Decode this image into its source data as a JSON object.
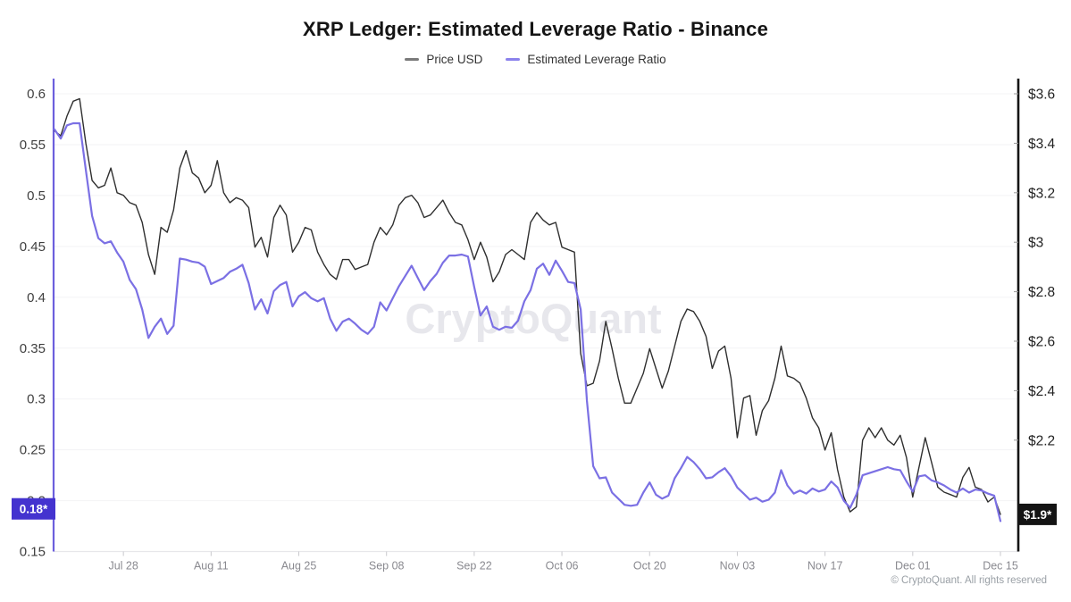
{
  "header": {
    "title": "XRP Ledger: Estimated Leverage Ratio - Binance"
  },
  "legend": [
    {
      "label": "Price USD",
      "color": "#7a7a7a"
    },
    {
      "label": "Estimated Leverage Ratio",
      "color": "#8b82ec"
    }
  ],
  "watermark": {
    "text": "CryptoQuant",
    "color": "#d8d8e0"
  },
  "footer": {
    "text": "© CryptoQuant. All rights reserved"
  },
  "chart_data": {
    "type": "line",
    "title": "XRP Ledger: Estimated Leverage Ratio - Binance",
    "x_start_date": "Jul 17",
    "x_frequency": "daily",
    "x_tick_days": [
      11,
      25,
      39,
      53,
      67,
      81,
      95,
      109,
      123,
      137,
      151
    ],
    "x_tick_labels": [
      "Jul 28",
      "Aug 11",
      "Aug 25",
      "Sep 08",
      "Sep 22",
      "Oct 06",
      "Oct 20",
      "Nov 03",
      "Nov 17",
      "Dec 01",
      "Dec 15"
    ],
    "grid": "horizontal",
    "left_axis": {
      "name": "Estimated Leverage Ratio",
      "range": [
        0.15,
        0.6
      ],
      "tick_values": [
        0.6,
        0.55,
        0.5,
        0.45,
        0.4,
        0.35,
        0.3,
        0.25,
        0.2,
        0.15
      ],
      "ticks": [
        "0.6",
        "0.55",
        "0.5",
        "0.45",
        "0.4",
        "0.35",
        "0.3",
        "0.25",
        "0.2",
        "0.15"
      ],
      "axis_color": "#6c5fdd",
      "label_color": "#3f3f3f"
    },
    "right_axis": {
      "name": "Price USD",
      "range_shown": [
        2.2,
        3.6
      ],
      "tick_values": [
        3.6,
        3.4,
        3.2,
        3.0,
        2.8,
        2.6,
        2.4,
        2.2
      ],
      "ticks": [
        "$3.6",
        "$3.4",
        "$3.2",
        "$3",
        "$2.8",
        "$2.6",
        "$2.4",
        "$2.2"
      ],
      "axis_color": "#141414",
      "label_color": "#222222"
    },
    "badges": [
      {
        "label": "0.18*",
        "axis": "left",
        "anchor": 0.192,
        "bg": "#4433cf",
        "fg": "#ffffff"
      },
      {
        "label": "$1.9*",
        "axis": "right",
        "anchor": 1.9,
        "bg": "#141414",
        "fg": "#ffffff"
      }
    ],
    "series": [
      {
        "name": "Price USD",
        "axis": "right",
        "color": "#2f2f2f",
        "width": 1.4,
        "values": [
          3.45,
          3.43,
          3.51,
          3.57,
          3.58,
          3.4,
          3.25,
          3.22,
          3.23,
          3.3,
          3.2,
          3.19,
          3.16,
          3.15,
          3.08,
          2.95,
          2.87,
          3.06,
          3.04,
          3.13,
          3.3,
          3.37,
          3.28,
          3.26,
          3.2,
          3.23,
          3.33,
          3.2,
          3.16,
          3.18,
          3.17,
          3.14,
          2.98,
          3.02,
          2.94,
          3.1,
          3.15,
          3.11,
          2.96,
          3.0,
          3.06,
          3.05,
          2.96,
          2.91,
          2.87,
          2.85,
          2.93,
          2.93,
          2.89,
          2.9,
          2.91,
          3.0,
          3.06,
          3.03,
          3.07,
          3.15,
          3.18,
          3.19,
          3.16,
          3.1,
          3.11,
          3.14,
          3.17,
          3.12,
          3.08,
          3.07,
          3.01,
          2.93,
          3.0,
          2.94,
          2.84,
          2.88,
          2.95,
          2.97,
          2.95,
          2.93,
          3.08,
          3.12,
          3.09,
          3.07,
          3.08,
          2.98,
          2.97,
          2.96,
          2.55,
          2.42,
          2.43,
          2.52,
          2.68,
          2.57,
          2.45,
          2.35,
          2.35,
          2.41,
          2.47,
          2.57,
          2.49,
          2.41,
          2.48,
          2.58,
          2.68,
          2.73,
          2.72,
          2.68,
          2.62,
          2.49,
          2.56,
          2.58,
          2.45,
          2.21,
          2.37,
          2.38,
          2.22,
          2.32,
          2.36,
          2.45,
          2.58,
          2.46,
          2.45,
          2.43,
          2.37,
          2.29,
          2.25,
          2.16,
          2.23,
          2.08,
          1.97,
          1.91,
          1.93,
          2.2,
          2.25,
          2.21,
          2.25,
          2.2,
          2.18,
          2.22,
          2.13,
          1.97,
          2.09,
          2.21,
          2.11,
          2.01,
          1.99,
          1.98,
          1.97,
          2.05,
          2.09,
          2.01,
          2.0,
          1.95,
          1.97,
          1.9
        ]
      },
      {
        "name": "Estimated Leverage Ratio",
        "axis": "left",
        "color": "#7b70e4",
        "width": 2.2,
        "values": [
          0.565,
          0.556,
          0.569,
          0.571,
          0.571,
          0.525,
          0.48,
          0.458,
          0.453,
          0.455,
          0.444,
          0.435,
          0.417,
          0.408,
          0.388,
          0.36,
          0.371,
          0.379,
          0.364,
          0.372,
          0.438,
          0.437,
          0.435,
          0.434,
          0.43,
          0.413,
          0.416,
          0.419,
          0.425,
          0.428,
          0.432,
          0.414,
          0.388,
          0.398,
          0.384,
          0.406,
          0.412,
          0.415,
          0.391,
          0.401,
          0.405,
          0.399,
          0.396,
          0.399,
          0.379,
          0.367,
          0.376,
          0.379,
          0.374,
          0.368,
          0.364,
          0.371,
          0.395,
          0.387,
          0.399,
          0.411,
          0.421,
          0.431,
          0.419,
          0.407,
          0.416,
          0.423,
          0.434,
          0.441,
          0.441,
          0.442,
          0.44,
          0.41,
          0.382,
          0.391,
          0.371,
          0.368,
          0.371,
          0.37,
          0.377,
          0.396,
          0.407,
          0.428,
          0.433,
          0.422,
          0.436,
          0.426,
          0.415,
          0.414,
          0.388,
          0.298,
          0.234,
          0.222,
          0.223,
          0.208,
          0.202,
          0.196,
          0.195,
          0.196,
          0.208,
          0.218,
          0.206,
          0.202,
          0.205,
          0.222,
          0.232,
          0.243,
          0.238,
          0.231,
          0.222,
          0.223,
          0.228,
          0.232,
          0.224,
          0.213,
          0.207,
          0.201,
          0.203,
          0.199,
          0.201,
          0.208,
          0.23,
          0.215,
          0.207,
          0.21,
          0.207,
          0.212,
          0.209,
          0.211,
          0.219,
          0.213,
          0.2,
          0.193,
          0.206,
          0.225,
          0.227,
          0.229,
          0.231,
          0.233,
          0.231,
          0.23,
          0.219,
          0.209,
          0.224,
          0.225,
          0.22,
          0.218,
          0.215,
          0.211,
          0.208,
          0.212,
          0.208,
          0.211,
          0.21,
          0.207,
          0.205,
          0.18
        ]
      }
    ]
  }
}
